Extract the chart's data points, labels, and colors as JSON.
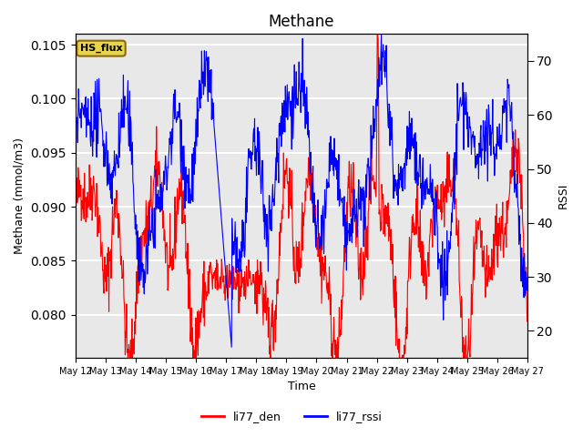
{
  "title": "Methane",
  "ylabel_left": "Methane (mmol/m3)",
  "ylabel_right": "RSSI",
  "xlabel": "Time",
  "ylim_left": [
    0.076,
    0.106
  ],
  "ylim_right": [
    15,
    75
  ],
  "xtick_labels": [
    "May 12",
    "May 13",
    "May 14",
    "May 15",
    "May 16",
    "May 17",
    "May 18",
    "May 19",
    "May 20",
    "May 21",
    "May 22",
    "May 23",
    "May 24",
    "May 25",
    "May 26",
    "May 27"
  ],
  "legend_labels": [
    "li77_den",
    "li77_rssi"
  ],
  "line_color_den": "red",
  "line_color_rssi": "blue",
  "tag_text": "HS_flux",
  "tag_bg": "#e8d44d",
  "tag_border": "#8B6914",
  "background_color": "#e8e8e8",
  "grid_color": "white",
  "title_fontsize": 12
}
